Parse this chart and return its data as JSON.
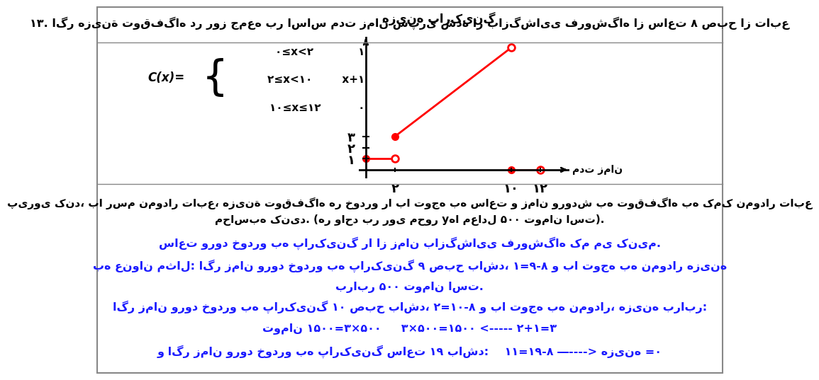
{
  "bg_color": "#ffffff",
  "graph_title": "هزینه پارکینگ",
  "x_label": "مدت زمان",
  "line1": {
    "x": [
      0,
      2
    ],
    "y": [
      1,
      1
    ],
    "closed_left": true,
    "open_right": true
  },
  "line2": {
    "x": [
      2,
      10
    ],
    "y": [
      3,
      11
    ],
    "closed_left": true,
    "open_right": true
  },
  "line3": {
    "x": [
      10,
      12
    ],
    "y": [
      0,
      0
    ],
    "closed_left": true,
    "open_right": true
  },
  "x_ticks": [
    2,
    10,
    12
  ],
  "x_tick_labels": [
    "۲",
    "۱۰",
    "۱۲"
  ],
  "y_ticks": [
    1,
    2,
    3
  ],
  "y_tick_labels": [
    "۱",
    "۲",
    "۳"
  ],
  "graph_color": "#ff0000",
  "text_color": "#000000",
  "title_line1": "۱۳. اگر هزینة توقفگاه در روز جمعه بر اساس مدت زمان سپری شده از بازگشایی فروشگاه از ساعت ۸ صبح از تابع",
  "piece_line1": "۱                ۰≤x<۲",
  "piece_line2": "x+۱           ۲≤x<۱۰",
  "piece_line3": "۰               ۱۰≤x≤۱۲",
  "cx_label": "C(x)=",
  "para1": "پیروی کند، با رسم نمودار تابع، هزینة توقفگاه هر خودرو را با توجه به ساعت و زمان ورودش به توقفگاه به کمک نمودار تابع",
  "para1_cont": "محاسبه کنید. (هر واحد بر روی محور yها معادل ۵۰۰ تومان است).",
  "para2": "ساعت ورود خودرو به پارکینگ را از زمان بازگشایی فروشگاه کم می کنیم.",
  "para3": "به عنوان مثال: اگر زمان ورود خودرو به پارکینگ ۹ صبح باشد، ۱=۹-۸ و با توجه به نمودار هزینه",
  "para3_cont": "برابر ۵۰۰ تومان است.",
  "para4": "اگر زمان ورود خودرو به پارکینگ ۱۰ صبح باشد، ۲=۱۰-۸ و با توجه به نمودار، هزینه برابر:",
  "para4_cont": "تومان ۱۵۰۰=۳×۵۰۰     ۳×۵۰۰=۱۵۰۰ <----- ۲+۱=۳",
  "para5": "و اگر زمان ورود خودرو به پارکینگ ساعت ۱۹ باشد:    ۱۱=۱۹-۸ ―----> هزینه =۰"
}
